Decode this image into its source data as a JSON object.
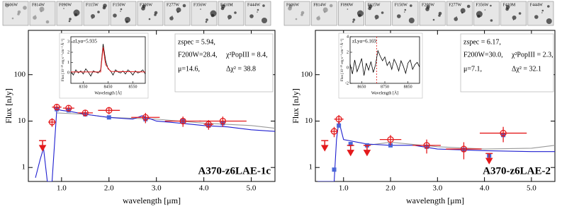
{
  "chart_data": [
    {
      "type": "scatter",
      "title": "A370-z6LAE-1c",
      "xlabel": "wavelength [μm]",
      "ylabel": "Flux [nJy]",
      "log_y": true,
      "stamps": [
        "F606W",
        "F814W",
        "F090W",
        "F115W",
        "F150W",
        "F200W",
        "F277W",
        "F356W",
        "F410M",
        "F444W"
      ],
      "xlim": [
        0.3,
        5.5
      ],
      "ylim": [
        0.5,
        900
      ],
      "xticks": [
        {
          "value": 1,
          "label": "1.0"
        },
        {
          "value": 2,
          "label": "2.0"
        },
        {
          "value": 3,
          "label": "3.0"
        },
        {
          "value": 4,
          "label": "4.0"
        },
        {
          "value": 5,
          "label": "5.0"
        }
      ],
      "yticks": [
        1,
        10,
        100
      ],
      "annotations": [
        "zspec = 5.94,",
        "F200W=28.4,",
        "χ²PopIII = 8.4,",
        "μ=14.6,",
        "Δχ² = 38.8"
      ],
      "photometry": {
        "color": "#e41a1c",
        "x": [
          0.8,
          0.9,
          1.15,
          1.5,
          2.0,
          2.77,
          3.56,
          4.1,
          4.4
        ],
        "values": [
          9.5,
          20,
          19,
          15,
          17,
          12,
          10,
          8.5,
          10
        ],
        "yerr": [
          2,
          3,
          3,
          2.5,
          3,
          3,
          2.5,
          2,
          2.5
        ],
        "xerr": [
          0.08,
          0.1,
          0.12,
          0.16,
          0.23,
          0.3,
          0.38,
          0.1,
          0.5
        ]
      },
      "upper_limits": {
        "color": "#e41a1c",
        "x": [
          0.6
        ],
        "values": [
          3.8
        ]
      },
      "model_photometry": {
        "color": "#4a66d8",
        "x": [
          0.9,
          1.15,
          1.5,
          2.0,
          2.77,
          3.56,
          4.1,
          4.4
        ],
        "values": [
          18,
          17,
          14,
          12,
          11,
          10,
          8,
          9
        ]
      },
      "models": [
        {
          "color": "#999999",
          "x": [
            0.9,
            1.5,
            2,
            3,
            4,
            5,
            5.5
          ],
          "values": [
            15,
            14,
            12,
            11,
            9,
            8,
            7
          ]
        },
        {
          "color": "#1f1fd0",
          "x": [
            0.45,
            0.55,
            0.62,
            0.7,
            0.8,
            0.85,
            0.9,
            1.0,
            1.2,
            1.5,
            2.0,
            2.5,
            2.7,
            3.0,
            3.5,
            4.0,
            4.5,
            5.0,
            5.5
          ],
          "values": [
            0.6,
            1.5,
            2.6,
            0.5,
            0.5,
            3,
            18,
            17,
            16,
            14,
            12,
            11,
            13,
            10,
            9,
            8,
            7.5,
            6.5,
            6
          ]
        }
      ],
      "inset": {
        "type": "line",
        "label": "zLyα=5.935",
        "xlabel": "Wavelength [Å]",
        "ylabel": "Flux [10⁻²⁰ erg s⁻¹ cm⁻² Å⁻¹]",
        "color": "#000000",
        "xlim": [
          8300,
          8600
        ],
        "ylim": [
          -1,
          3.5
        ],
        "xticks": [
          8350,
          8450,
          8550
        ],
        "yticks": [
          0,
          1,
          2,
          3
        ],
        "x": [
          8300,
          8310,
          8320,
          8330,
          8340,
          8350,
          8360,
          8370,
          8380,
          8390,
          8400,
          8410,
          8420,
          8430,
          8440,
          8450,
          8460,
          8470,
          8480,
          8490,
          8500,
          8510,
          8520,
          8530,
          8540,
          8550,
          8560,
          8570,
          8580,
          8590,
          8600
        ],
        "values": [
          0.1,
          -0.2,
          0.3,
          0.0,
          0.2,
          -0.1,
          0.4,
          0.1,
          -0.3,
          0.2,
          0.1,
          0.0,
          0.3,
          2.8,
          1.2,
          0.4,
          0.2,
          -0.2,
          0.3,
          0.1,
          0.0,
          0.2,
          -0.1,
          0.3,
          0.1,
          -0.2,
          0.2,
          0.0,
          0.1,
          0.3,
          -0.1
        ],
        "fit": {
          "color": "#e41a1c",
          "x": [
            8300,
            8420,
            8430,
            8440,
            8460,
            8600
          ],
          "values": [
            0.1,
            0.1,
            2.5,
            0.8,
            0.15,
            0.1
          ]
        }
      }
    },
    {
      "type": "scatter",
      "title": "A370-z6LAE-2",
      "xlabel": "wavelength [μm]",
      "ylabel": "Flux [nJy]",
      "log_y": true,
      "stamps": [
        "F606W",
        "F814W",
        "F090W",
        "F115W",
        "F150W",
        "F200W",
        "F277W",
        "F356W",
        "F410M",
        "F444W"
      ],
      "xlim": [
        0.4,
        5.5
      ],
      "ylim": [
        0.5,
        900
      ],
      "xticks": [
        {
          "value": 1,
          "label": "1.0"
        },
        {
          "value": 2,
          "label": "2.0"
        },
        {
          "value": 3,
          "label": "3.0"
        },
        {
          "value": 4,
          "label": "4.0"
        },
        {
          "value": 5,
          "label": "5.0"
        }
      ],
      "yticks": [
        1,
        10,
        100
      ],
      "annotations": [
        "zspec = 6.17,",
        "F200W=30.0,",
        "χ²PopIII = 2.3,",
        "μ=7.1,",
        "Δχ² = 32.1"
      ],
      "photometry": {
        "color": "#e41a1c",
        "x": [
          0.8,
          0.9,
          2.0,
          2.77,
          3.56,
          4.4
        ],
        "values": [
          6,
          11,
          4,
          3,
          2.5,
          5.5
        ],
        "yerr": [
          1.5,
          2.5,
          1,
          1,
          1,
          2
        ],
        "xerr": [
          0.08,
          0.1,
          0.23,
          0.3,
          0.38,
          0.5
        ]
      },
      "upper_limits": {
        "color": "#e41a1c",
        "x": [
          0.6,
          1.15,
          1.5,
          4.1
        ],
        "values": [
          3.8,
          3,
          3,
          2
        ]
      },
      "model_photometry": {
        "color": "#4a66d8",
        "x": [
          0.8,
          0.9,
          1.15,
          1.5,
          2.0,
          2.77,
          3.56,
          4.1,
          4.4
        ],
        "values": [
          0.9,
          8,
          3.2,
          3,
          3,
          2.8,
          2.4,
          1.8,
          5
        ]
      },
      "models": [
        {
          "color": "#999999",
          "x": [
            1.5,
            2,
            3,
            4,
            5,
            5.5
          ],
          "values": [
            3,
            3.5,
            2.8,
            2.5,
            2.6,
            3
          ]
        },
        {
          "color": "#1f1fd0",
          "x": [
            0.45,
            0.6,
            0.8,
            0.85,
            0.9,
            1.0,
            1.5,
            2.0,
            2.5,
            3.0,
            3.5,
            4.0,
            5.0,
            5.5
          ],
          "values": [
            0.5,
            0.5,
            0.5,
            4,
            10,
            4,
            3.2,
            3,
            3,
            2.5,
            2.4,
            2.3,
            2.2,
            2.2
          ]
        }
      ],
      "inset": {
        "type": "line",
        "label": "zLyα=6.169",
        "xlabel": "Wavelength [Å]",
        "ylabel": "Flux [10⁻²⁰ erg s⁻¹ cm⁻² Å⁻¹]",
        "color": "#000000",
        "xlim": [
          8600,
          8900
        ],
        "ylim": [
          -2,
          4
        ],
        "xticks": [
          8650,
          8750,
          8850
        ],
        "yticks": [
          -2,
          0,
          2,
          4
        ],
        "line_wavelength": 8715,
        "x": [
          8600,
          8610,
          8620,
          8630,
          8640,
          8650,
          8660,
          8670,
          8680,
          8690,
          8700,
          8710,
          8720,
          8730,
          8740,
          8750,
          8760,
          8770,
          8780,
          8790,
          8800,
          8810,
          8820,
          8830,
          8840,
          8850,
          8860,
          8870,
          8880,
          8890,
          8900
        ],
        "values": [
          0.5,
          -0.8,
          1.0,
          -0.5,
          0.3,
          1.2,
          -1.0,
          0.6,
          -0.3,
          0.8,
          -0.6,
          0.4,
          2.2,
          1.5,
          0.9,
          1.4,
          0.3,
          0.8,
          -0.2,
          1.1,
          0.5,
          -0.4,
          0.9,
          0.2,
          -0.7,
          0.6,
          1.0,
          -0.2,
          0.4,
          0.7,
          0.1
        ]
      }
    }
  ]
}
